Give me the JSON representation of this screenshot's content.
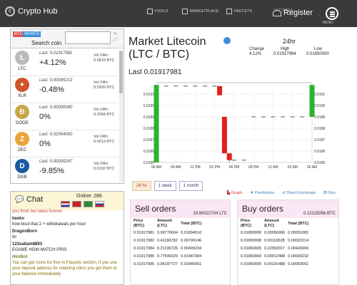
{
  "topbar": {
    "brand": "Crypto Hub",
    "nav": [
      "FOOLS",
      "MARKETPLACE",
      "FAUCETS",
      "SETTINGS"
    ],
    "register": "Register",
    "menu": "MENU"
  },
  "coin_panel": {
    "tabs": [
      "BTC",
      "WAVES"
    ],
    "search_label": "Search coin",
    "search_value": "",
    "coins": [
      {
        "symbol": "LTC",
        "price": "Last: 0.01917981",
        "change": "+4.12%",
        "vol_label": "Vol 24hr:",
        "vol": "0.0510 BTC",
        "color": "#bbbbbb",
        "letter": "Ł",
        "positive": true
      },
      {
        "symbol": "XLR",
        "price": "Last: 0.00085212",
        "change": "-0.48%",
        "vol_label": "Vol 24hr:",
        "vol": "0.0509 BTC",
        "color": "#d0542a",
        "letter": "✦",
        "positive": false
      },
      {
        "symbol": "DOGE",
        "price": "Last: 0.00000040",
        "change": "0%",
        "vol_label": "Vol 24hr:",
        "vol": "0.2668 BTC",
        "color": "#c8a748",
        "letter": "Ð",
        "positive": null
      },
      {
        "symbol": "ZEC",
        "price": "Last: 0.02994000",
        "change": "0%",
        "vol_label": "Vol 24hr:",
        "vol": "0.0013 BTC",
        "color": "#e8a53a",
        "letter": "Z",
        "positive": null
      },
      {
        "symbol": "DGB",
        "price": "Last: 0.00000247",
        "change": "-9.85%",
        "vol_label": "Vol 24hr:",
        "vol": "0.0192 BTC",
        "color": "#1a5aa0",
        "letter": "D",
        "positive": false
      }
    ]
  },
  "chat": {
    "title": "Chat",
    "online": "Online: 286",
    "messages": [
      {
        "user": "",
        "text": "you think bot takes forever",
        "style": "faded"
      },
      {
        "user": "keeko",
        "text": "how bout that 2 + withdrawals per hour",
        "style": "normal"
      },
      {
        "user": "DragonBorn",
        "text": "ikr",
        "style": "normal"
      },
      {
        "user": "123sallam8893",
        "text": "EGAME HOW MATCH PRIS",
        "style": "normal"
      },
      {
        "user": "HintBot",
        "text": "You can get coins for free in Faucets section, if you use your deposit address for claiming coins you get them to your balance immediately",
        "style": "bot"
      }
    ]
  },
  "market": {
    "title_line1": "Market Litecoin",
    "title_line2": "(LTC / BTC)",
    "last": "Last 0.01917981",
    "header_24hr": "24hr",
    "stats": [
      {
        "label": "Change",
        "value": "4.12%"
      },
      {
        "label": "High",
        "value": "0.01917994"
      },
      {
        "label": "Low",
        "value": "0.01850000"
      }
    ]
  },
  "chart_data": {
    "type": "candlestick",
    "y_ticks": [
      "0.0191",
      "0.0190",
      "0.0189",
      "0.0188",
      "0.0187",
      "0.0186",
      "0.0185"
    ],
    "ylim": [
      0.0185,
      0.0192
    ],
    "x_ticks": [
      "06 AM",
      "09 AM",
      "12 PM",
      "03 PM",
      "06 PM",
      "09 PM",
      "12 AM",
      "03 AM",
      "06 AM"
    ],
    "candles": [
      {
        "x": 0.0,
        "open": 0.0185,
        "close": 0.01918,
        "high": 0.01918,
        "low": 0.0185,
        "dir": "up"
      },
      {
        "x": 0.5,
        "open": 0.01917,
        "close": 0.01917,
        "high": 0.01917,
        "low": 0.01917,
        "dir": "flat"
      },
      {
        "x": 1.0,
        "open": 0.01917,
        "close": 0.01917,
        "high": 0.01917,
        "low": 0.01917,
        "dir": "flat"
      },
      {
        "x": 1.5,
        "open": 0.01917,
        "close": 0.01917,
        "high": 0.01917,
        "low": 0.01917,
        "dir": "flat"
      },
      {
        "x": 2.0,
        "open": 0.01917,
        "close": 0.01917,
        "high": 0.01917,
        "low": 0.01917,
        "dir": "flat"
      },
      {
        "x": 2.5,
        "open": 0.01917,
        "close": 0.01917,
        "high": 0.01917,
        "low": 0.01917,
        "dir": "flat"
      },
      {
        "x": 3.0,
        "open": 0.01917,
        "close": 0.01917,
        "high": 0.01917,
        "low": 0.01917,
        "dir": "flat"
      },
      {
        "x": 3.25,
        "open": 0.01917,
        "close": 0.01909,
        "high": 0.01917,
        "low": 0.01909,
        "dir": "down"
      },
      {
        "x": 3.5,
        "open": 0.0189,
        "close": 0.01858,
        "high": 0.0189,
        "low": 0.01858,
        "dir": "down"
      },
      {
        "x": 3.75,
        "open": 0.01858,
        "close": 0.01852,
        "high": 0.01858,
        "low": 0.0185,
        "dir": "down"
      },
      {
        "x": 4.0,
        "open": 0.01852,
        "close": 0.01852,
        "high": 0.01852,
        "low": 0.01852,
        "dir": "flat"
      },
      {
        "x": 4.5,
        "open": 0.01852,
        "close": 0.01852,
        "high": 0.01852,
        "low": 0.01852,
        "dir": "flat"
      },
      {
        "x": 5.0,
        "open": 0.0189,
        "close": 0.0189,
        "high": 0.0189,
        "low": 0.0189,
        "dir": "flat"
      },
      {
        "x": 5.5,
        "open": 0.0189,
        "close": 0.0189,
        "high": 0.0189,
        "low": 0.0189,
        "dir": "flat"
      },
      {
        "x": 6.0,
        "open": 0.0189,
        "close": 0.0189,
        "high": 0.0189,
        "low": 0.0189,
        "dir": "flat"
      },
      {
        "x": 6.5,
        "open": 0.0189,
        "close": 0.0189,
        "high": 0.0189,
        "low": 0.0189,
        "dir": "flat"
      },
      {
        "x": 7.0,
        "open": 0.0189,
        "close": 0.0189,
        "high": 0.0189,
        "low": 0.0189,
        "dir": "flat"
      },
      {
        "x": 7.5,
        "open": 0.0189,
        "close": 0.0189,
        "high": 0.0189,
        "low": 0.0189,
        "dir": "flat"
      },
      {
        "x": 8.0,
        "open": 0.0189,
        "close": 0.01918,
        "high": 0.01918,
        "low": 0.0189,
        "dir": "up"
      }
    ],
    "up_color": "#2db32d",
    "down_color": "#e02020",
    "grid": true
  },
  "periods": [
    "24 hs",
    "1 week",
    "1 month"
  ],
  "chart_tabs": [
    "Graph",
    "Predictions",
    "Direct Exchange",
    "Dice"
  ],
  "sell_orders": {
    "title": "Sell orders",
    "total": "19.90022704 LTC",
    "headers": [
      "Price\n(BTC)",
      "Amount\n(LTC)",
      "Total (BTC)"
    ],
    "rows": [
      [
        "0.01917981",
        "0.98776604",
        "0.01894516"
      ],
      [
        "0.01917982",
        "0.41196782",
        "0.00790146"
      ],
      [
        "0.01917984",
        "0.21336726",
        "0.00409234"
      ],
      [
        "0.01917985",
        "0.77549329",
        "0.01487384"
      ],
      [
        "0.01917995",
        "0.96197727",
        "0.01845061"
      ]
    ]
  },
  "buy_orders": {
    "title": "Buy orders",
    "total": "0.12115056 BTC",
    "headers": [
      "Price\n(BTC)",
      "Amount\n(LTC)",
      "Total (BTC)"
    ],
    "rows": [
      [
        "0.01899999",
        "0.00056996",
        "0.00001082"
      ],
      [
        "0.01899998",
        "0.00116528",
        "0.00002214"
      ],
      [
        "0.01860005",
        "0.22952017",
        "0.00426909"
      ],
      [
        "0.01860004",
        "0.00012488",
        "0.00000232"
      ],
      [
        "0.01860000",
        "0.00191488",
        "0.00003561"
      ]
    ]
  }
}
